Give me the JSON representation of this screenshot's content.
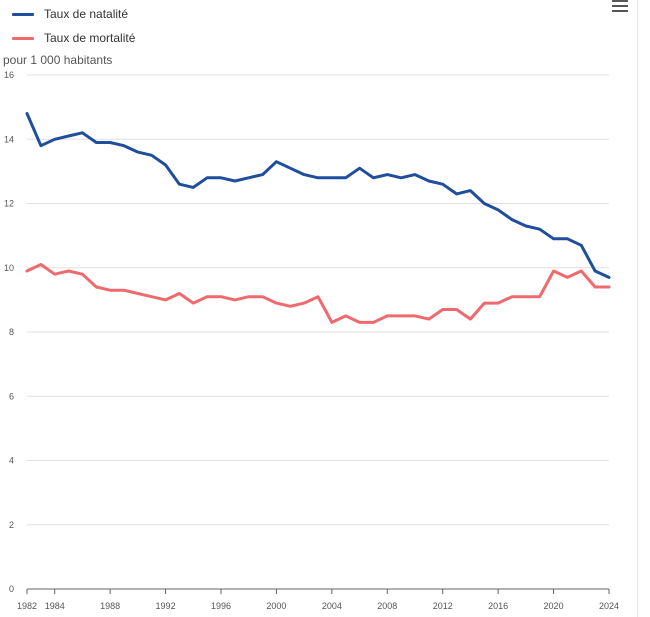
{
  "toolbar": {
    "menu_icon": "hamburger-menu-icon"
  },
  "legend": [
    {
      "label": "Taux de natalité",
      "color": "#1f4e9c"
    },
    {
      "label": "Taux de mortalité",
      "color": "#ee6a6d"
    }
  ],
  "chart_data": {
    "type": "line",
    "ylabel": "pour 1 000 habitants",
    "ylim": [
      0,
      16
    ],
    "y_ticks": [
      "0",
      "2",
      "4",
      "6",
      "8",
      "10",
      "12",
      "14",
      "16"
    ],
    "x_ticks": [
      "1982",
      "1984",
      "1988",
      "1992",
      "1996",
      "2000",
      "2004",
      "2008",
      "2012",
      "2016",
      "2020",
      "2024"
    ],
    "grid": "horizontal",
    "x": [
      1982,
      1983,
      1984,
      1985,
      1986,
      1987,
      1988,
      1989,
      1990,
      1991,
      1992,
      1993,
      1994,
      1995,
      1996,
      1997,
      1998,
      1999,
      2000,
      2001,
      2002,
      2003,
      2004,
      2005,
      2006,
      2007,
      2008,
      2009,
      2010,
      2011,
      2012,
      2013,
      2014,
      2015,
      2016,
      2017,
      2018,
      2019,
      2020,
      2021,
      2022,
      2023,
      2024
    ],
    "series": [
      {
        "name": "Taux de natalité",
        "color": "#1f4e9c",
        "values": [
          14.8,
          13.8,
          14.0,
          14.1,
          14.2,
          13.9,
          13.9,
          13.8,
          13.6,
          13.5,
          13.2,
          12.6,
          12.5,
          12.8,
          12.8,
          12.7,
          12.8,
          12.9,
          13.3,
          13.1,
          12.9,
          12.8,
          12.8,
          12.8,
          13.1,
          12.8,
          12.9,
          12.8,
          12.9,
          12.7,
          12.6,
          12.3,
          12.4,
          12.0,
          11.8,
          11.5,
          11.3,
          11.2,
          10.9,
          10.9,
          10.7,
          9.9,
          9.7
        ]
      },
      {
        "name": "Taux de mortalité",
        "color": "#ee6a6d",
        "values": [
          9.9,
          10.1,
          9.8,
          9.9,
          9.8,
          9.4,
          9.3,
          9.3,
          9.2,
          9.1,
          9.0,
          9.2,
          8.9,
          9.1,
          9.1,
          9.0,
          9.1,
          9.1,
          8.9,
          8.8,
          8.9,
          9.1,
          8.3,
          8.5,
          8.3,
          8.3,
          8.5,
          8.5,
          8.5,
          8.4,
          8.7,
          8.7,
          8.4,
          8.9,
          8.9,
          9.1,
          9.1,
          9.1,
          9.9,
          9.7,
          9.9,
          9.4,
          9.4
        ]
      }
    ]
  }
}
